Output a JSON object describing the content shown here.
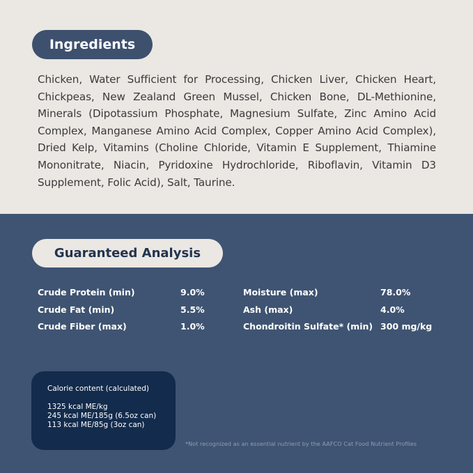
{
  "ingredients": {
    "title": "Ingredients",
    "text": "Chicken, Water Sufficient for Processing, Chicken Liver, Chicken Heart, Chickpeas, New Zealand Green Mussel, Chicken Bone, DL-Methionine, Minerals (Dipotassium Phosphate, Magnesium Sulfate, Zinc Amino Acid Complex, Manganese Amino Acid Complex, Copper Amino Acid Complex), Dried Kelp, Vitamins (Choline Chloride, Vitamin E Supplement, Thiamine Mononitrate, Niacin, Pyridoxine Hydrochloride, Riboflavin, Vitamin D3 Supplement, Folic Acid), Salt, Taurine."
  },
  "analysis": {
    "title": "Guaranteed Analysis",
    "left": [
      {
        "label": "Crude Protein (min)",
        "value": "9.0%"
      },
      {
        "label": "Crude Fat (min)",
        "value": "5.5%"
      },
      {
        "label": "Crude Fiber (max)",
        "value": "1.0%"
      }
    ],
    "right": [
      {
        "label": "Moisture (max)",
        "value": "78.0%"
      },
      {
        "label": "Ash (max)",
        "value": "4.0%"
      },
      {
        "label": "Chondroitin Sulfate* (min)",
        "value": "300 mg/kg"
      }
    ]
  },
  "calorie": {
    "title": "Calorie content (calculated)",
    "lines": [
      "1325 kcal ME/kg",
      "245 kcal ME/185g (6.5oz can)",
      "113 kcal ME/85g (3oz can)"
    ]
  },
  "footnote": "*Not recognized as an essential nutrient by the AAFCO Cat Food Nutrient Profiles"
}
